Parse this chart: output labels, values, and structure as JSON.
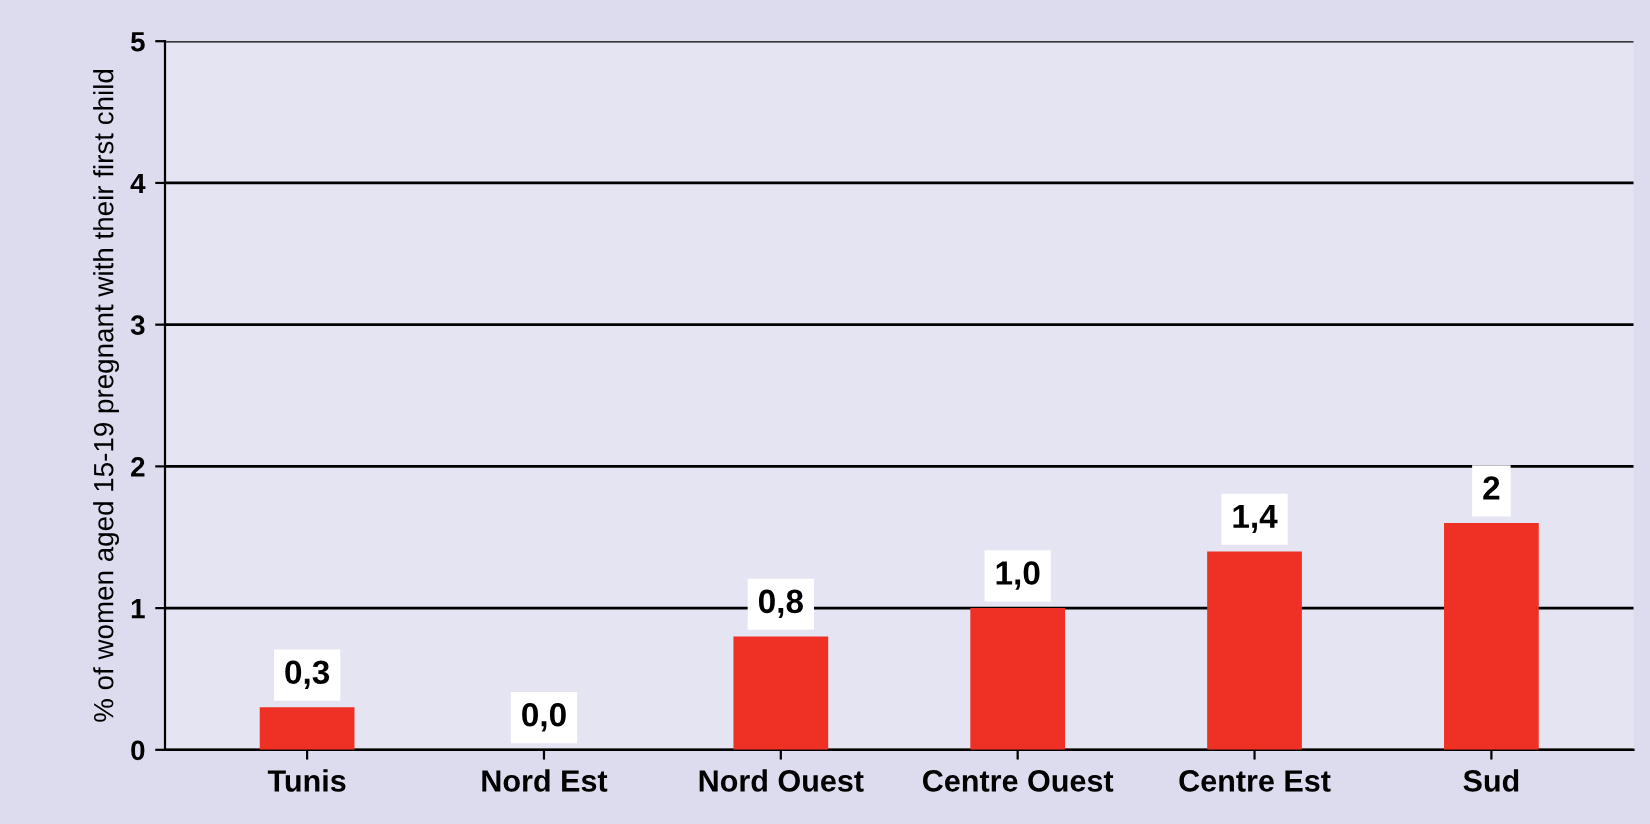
{
  "chart_data": {
    "type": "bar",
    "ylabel": "% of women aged 15-19 pregnant with their first child",
    "categories": [
      "Tunis",
      "Nord Est",
      "Nord Ouest",
      "Centre Ouest",
      "Centre Est",
      "Sud"
    ],
    "values": [
      0.3,
      0.0,
      0.8,
      1.0,
      1.4,
      1.6
    ],
    "value_labels": [
      "0,3",
      "0,0",
      "0,8",
      "1,0",
      "1,4",
      "2"
    ],
    "color": "#ee3124",
    "ylim": [
      0,
      5
    ],
    "yticks": [
      0,
      1,
      2,
      3,
      4,
      5
    ],
    "grid": "y"
  }
}
